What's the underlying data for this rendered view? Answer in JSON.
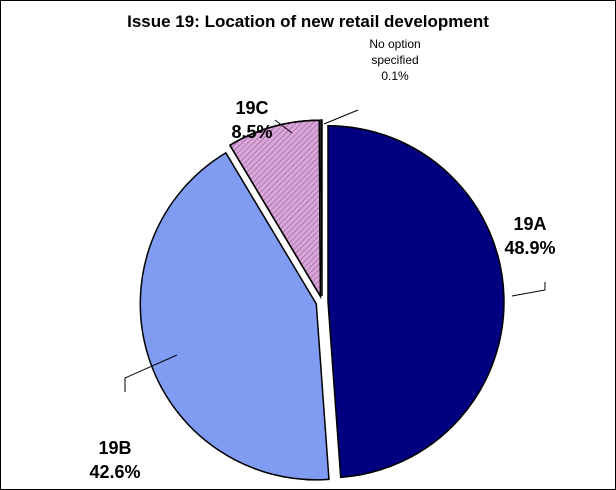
{
  "chart_data": {
    "type": "pie",
    "title": "Issue 19: Location of new retail development",
    "categories": [
      "19A",
      "19B",
      "19C",
      "No option specified"
    ],
    "values": [
      48.9,
      42.6,
      8.5,
      0.1
    ],
    "value_labels": [
      "48.9%",
      "42.6%",
      "8.5%",
      "0.1%"
    ],
    "colors": [
      "#000080",
      "#7f9cf2",
      "#d9a6d9",
      "#ffffff"
    ]
  }
}
